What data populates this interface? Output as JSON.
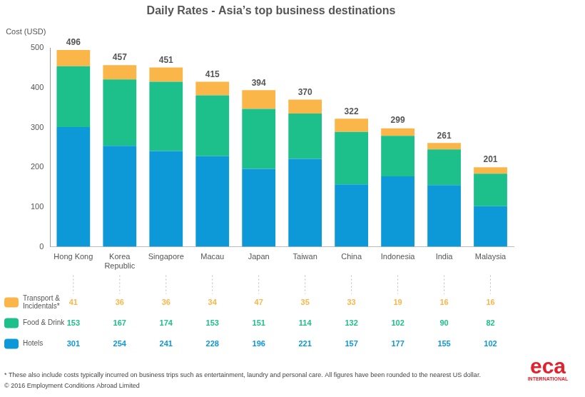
{
  "chart_data": {
    "type": "bar",
    "title": "Daily Rates - Asia’s top business destinations",
    "y_label": "Cost (USD)",
    "categories": [
      "Hong Kong",
      "Korea Republic",
      "Singapore",
      "Macau",
      "Japan",
      "Taiwan",
      "China",
      "Indonesia",
      "India",
      "Malaysia"
    ],
    "series": [
      {
        "name": "Transport & Incidentals*",
        "color": "#fbb64a",
        "values": [
          41,
          36,
          36,
          34,
          47,
          35,
          33,
          19,
          16,
          16
        ]
      },
      {
        "name": "Food & Drink",
        "color": "#1dbf8a",
        "values": [
          153,
          167,
          174,
          153,
          151,
          114,
          132,
          102,
          90,
          82
        ]
      },
      {
        "name": "Hotels",
        "color": "#0d98d8",
        "values": [
          301,
          254,
          241,
          228,
          196,
          221,
          157,
          177,
          155,
          102
        ]
      }
    ],
    "totals": [
      496,
      457,
      451,
      415,
      394,
      370,
      322,
      299,
      261,
      201
    ],
    "stacked": true,
    "ylim": [
      0,
      500
    ],
    "yticks": [
      0,
      100,
      200,
      300,
      400,
      500
    ],
    "grid": false,
    "footnote": "* These also include costs typically incurred on business trips such as entertainment, laundry and personal care. All figures have been rounded to the nearest US dollar.",
    "copyright": "© 2016 Employment Conditions Abroad Limited",
    "logo": "eca",
    "logo_subtitle": "INTERNATIONAL"
  }
}
